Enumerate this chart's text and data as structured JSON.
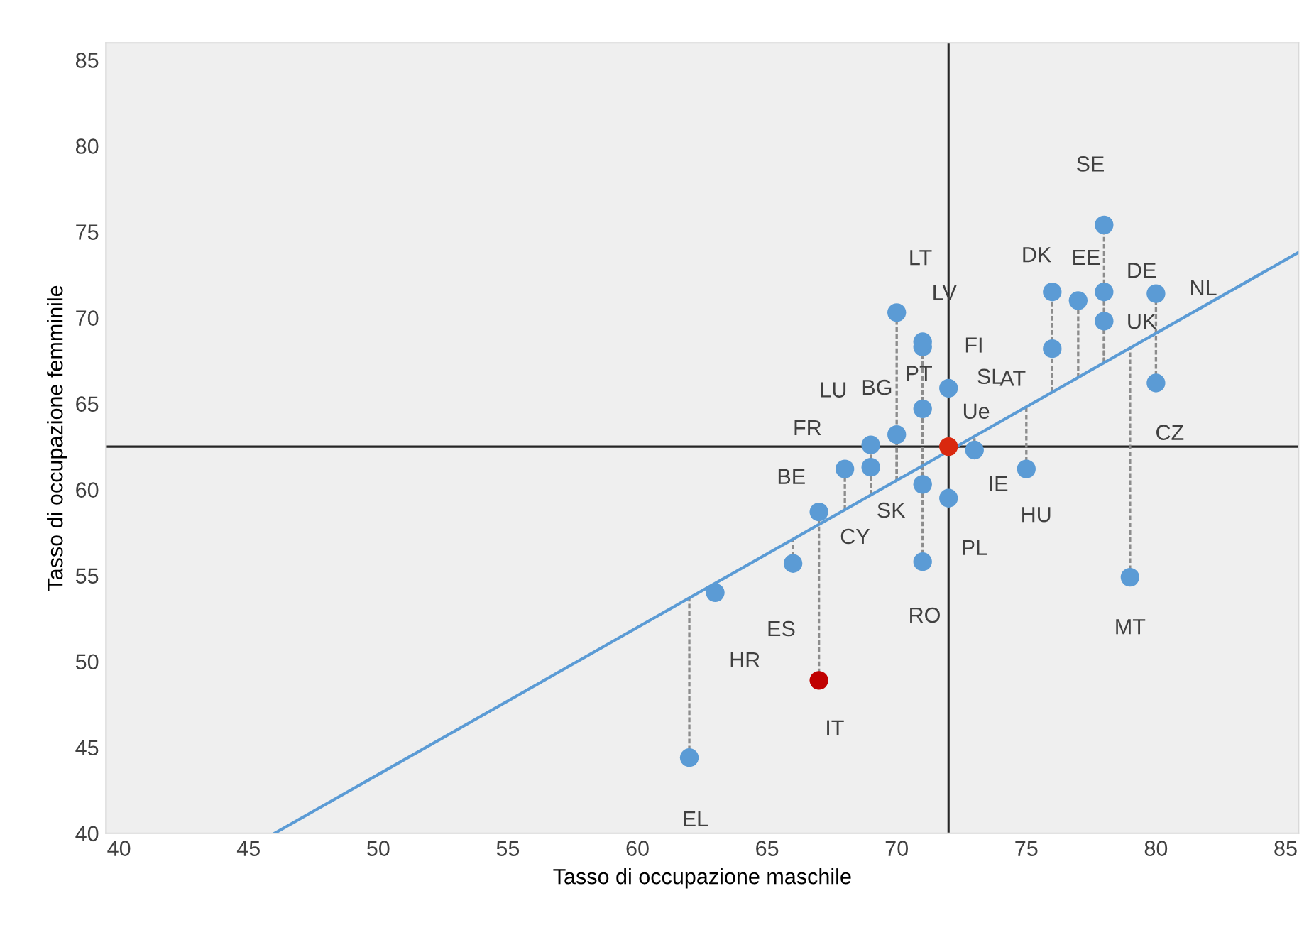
{
  "chart_data": {
    "type": "scatter",
    "xlabel": "Tasso di occupazione maschile",
    "ylabel": "Tasso di occupazione femminile",
    "xlim": [
      39.5,
      85.5
    ],
    "ylim": [
      40,
      86
    ],
    "xticks": [
      40,
      45,
      50,
      55,
      60,
      65,
      70,
      75,
      80,
      85
    ],
    "yticks": [
      40,
      45,
      50,
      55,
      60,
      65,
      70,
      75,
      80,
      85
    ],
    "grid": false,
    "legend": false,
    "series": [
      {
        "marker": "circle",
        "errors": [
          [
            67.4,
            75.4
          ],
          [
            65.7,
            71.5
          ],
          [
            66.5,
            71.0
          ],
          [
            67.4,
            71.5
          ],
          [
            69.1,
            71.4
          ],
          [
            67.4,
            69.8
          ],
          [
            65.7,
            68.2
          ],
          [
            66.2,
            69.1
          ],
          [
            61.2,
            64.8
          ],
          [
            54.9,
            68.2
          ],
          [
            62.3,
            63.1
          ],
          null,
          null,
          null,
          [
            61.4,
            68.3
          ],
          [
            61.4,
            68.6
          ],
          [
            61.4,
            64.7
          ],
          [
            60.5,
            70.3
          ],
          [
            60.5,
            63.2
          ],
          [
            59.7,
            62.6
          ],
          [
            58.8,
            61.2
          ],
          [
            59.7,
            61.3
          ],
          [
            60.3,
            61.4
          ],
          [
            55.8,
            61.4
          ],
          [
            58.0,
            58.7
          ],
          [
            55.7,
            57.1
          ],
          null,
          [
            48.9,
            58.0
          ],
          [
            44.4,
            53.7
          ]
        ],
        "x": [
          78,
          76,
          77,
          78,
          80,
          78,
          76,
          80,
          75,
          79,
          73,
          72,
          72,
          72,
          71,
          71,
          71,
          70,
          70,
          69,
          68,
          69,
          71,
          71,
          67,
          66,
          63,
          67,
          62
        ],
        "values": [
          75.4,
          71.5,
          71.0,
          71.5,
          71.4,
          69.8,
          68.2,
          66.2,
          61.2,
          54.9,
          62.3,
          62.5,
          65.9,
          59.5,
          68.3,
          68.6,
          64.7,
          70.3,
          63.2,
          62.6,
          61.2,
          61.3,
          60.3,
          55.8,
          58.7,
          55.7,
          54.0,
          48.9,
          44.4
        ],
        "colors": [
          "#5b9bd5",
          "#5b9bd5",
          "#5b9bd5",
          "#5b9bd5",
          "#5b9bd5",
          "#5b9bd5",
          "#5b9bd5",
          "#5b9bd5",
          "#5b9bd5",
          "#5b9bd5",
          "#5b9bd5",
          "#d9280f",
          "#5b9bd5",
          "#5b9bd5",
          "#5b9bd5",
          "#5b9bd5",
          "#5b9bd5",
          "#5b9bd5",
          "#5b9bd5",
          "#5b9bd5",
          "#5b9bd5",
          "#5b9bd5",
          "#5b9bd5",
          "#5b9bd5",
          "#5b9bd5",
          "#5b9bd5",
          "#5b9bd5",
          "#c00000",
          "#5b9bd5"
        ]
      },
      {
        "type": "line",
        "color": "#5b9bd5",
        "line_style": "solid",
        "marker": "none",
        "x": [
          46,
          85.5
        ],
        "values": [
          40,
          73.8
        ]
      }
    ],
    "ref_lines": [
      {
        "axis": "x",
        "value": 72,
        "color": "#262626"
      },
      {
        "axis": "y",
        "value": 62.5,
        "color": "#262626"
      }
    ],
    "annotations": [
      {
        "text": "SE",
        "x": 78,
        "y": 75.4
      },
      {
        "text": "DK",
        "x": 76,
        "y": 71.5
      },
      {
        "text": "EE",
        "x": 77,
        "y": 71.0
      },
      {
        "text": "DE",
        "x": 78,
        "y": 71.5
      },
      {
        "text": "NL",
        "x": 80,
        "y": 71.4
      },
      {
        "text": "UK",
        "x": 78,
        "y": 69.8
      },
      {
        "text": "AT",
        "x": 76,
        "y": 68.2
      },
      {
        "text": "CZ",
        "x": 80,
        "y": 66.2
      },
      {
        "text": "HU",
        "x": 75,
        "y": 61.2
      },
      {
        "text": "MT",
        "x": 79,
        "y": 54.9
      },
      {
        "text": "IE",
        "x": 73,
        "y": 62.3
      },
      {
        "text": "Ue",
        "x": 72,
        "y": 62.5
      },
      {
        "text": "SL",
        "x": 72,
        "y": 65.9
      },
      {
        "text": "PL",
        "x": 72,
        "y": 59.5
      },
      {
        "text": "FI",
        "x": 71,
        "y": 68.3
      },
      {
        "text": "LV",
        "x": 71,
        "y": 68.6
      },
      {
        "text": "PT",
        "x": 71,
        "y": 64.7
      },
      {
        "text": "LT",
        "x": 70,
        "y": 70.3
      },
      {
        "text": "BG",
        "x": 70,
        "y": 63.2
      },
      {
        "text": "LU",
        "x": 69,
        "y": 62.6
      },
      {
        "text": "FR",
        "x": 68,
        "y": 61.2
      },
      {
        "text": "CY",
        "x": 69,
        "y": 61.3
      },
      {
        "text": "SK",
        "x": 71,
        "y": 60.3
      },
      {
        "text": "RO",
        "x": 71,
        "y": 55.8
      },
      {
        "text": "BE",
        "x": 67,
        "y": 58.7
      },
      {
        "text": "ES",
        "x": 66,
        "y": 55.7
      },
      {
        "text": "HR",
        "x": 63,
        "y": 54.0
      },
      {
        "text": "IT",
        "x": 67,
        "y": 48.9
      },
      {
        "text": "EL",
        "x": 62,
        "y": 44.4
      }
    ]
  }
}
